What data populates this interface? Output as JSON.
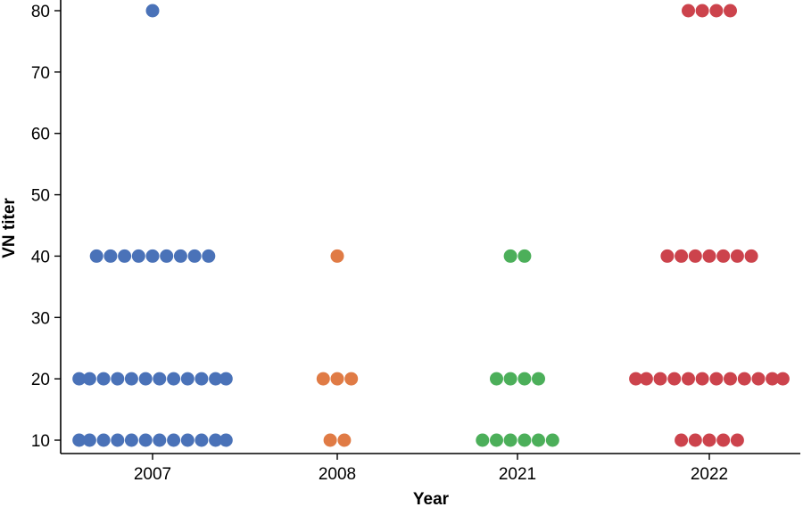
{
  "chart_data": {
    "type": "scatter",
    "subtype": "beeswarm",
    "title": "",
    "xlabel": "Year",
    "ylabel": "VN titer",
    "categories": [
      "2007",
      "2008",
      "2021",
      "2022"
    ],
    "yticks": [
      10,
      20,
      30,
      40,
      50,
      60,
      70,
      80
    ],
    "ylim": [
      10,
      80
    ],
    "grid": false,
    "legend": "none",
    "series": [
      {
        "category": "2007",
        "color": "#4a72b8",
        "points": [
          {
            "y": 10,
            "count": 12
          },
          {
            "y": 20,
            "count": 12
          },
          {
            "y": 40,
            "count": 9
          },
          {
            "y": 80,
            "count": 1
          }
        ]
      },
      {
        "category": "2008",
        "color": "#e07b45",
        "points": [
          {
            "y": 10,
            "count": 2
          },
          {
            "y": 20,
            "count": 3
          },
          {
            "y": 40,
            "count": 1
          }
        ]
      },
      {
        "category": "2021",
        "color": "#4caf5a",
        "points": [
          {
            "y": 10,
            "count": 6
          },
          {
            "y": 20,
            "count": 4
          },
          {
            "y": 40,
            "count": 2
          }
        ]
      },
      {
        "category": "2022",
        "color": "#cc434c",
        "points": [
          {
            "y": 10,
            "count": 5
          },
          {
            "y": 20,
            "count": 12
          },
          {
            "y": 40,
            "count": 7
          },
          {
            "y": 80,
            "count": 4
          }
        ]
      }
    ]
  }
}
